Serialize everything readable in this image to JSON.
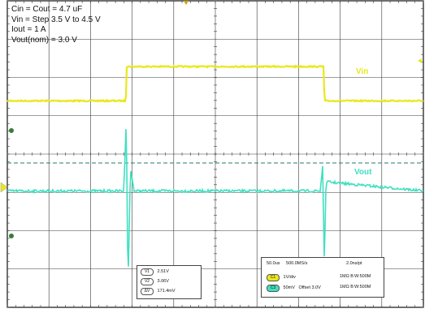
{
  "test_conditions": [
    "Cin = Cout = 4.7 uF",
    "Vin = Step 3.5 V to 4.5 V",
    "Iout = 1 A",
    "Vout(nom) = 3.0 V"
  ],
  "colors": {
    "vin": "#e8e81e",
    "vout": "#40e0c0",
    "grid": "#3a3a3a",
    "frame": "#111111",
    "background": "#ffffff"
  },
  "chart_data": {
    "type": "line",
    "title": "",
    "xlabel": "",
    "ylabel": "",
    "grid": true,
    "divisions": {
      "x": 10,
      "y": 8
    },
    "series": [
      {
        "name": "Vin",
        "color": "#e8e81e",
        "channel": "C1",
        "scale": "1V/div",
        "x": [
          0,
          2.85,
          2.86,
          7.61,
          7.62,
          10
        ],
        "y": [
          3.5,
          3.5,
          4.5,
          4.5,
          3.5,
          3.5
        ]
      },
      {
        "name": "Vout",
        "color": "#40e0c0",
        "channel": "C3",
        "scale": "50mV/div",
        "offset": "3.0V",
        "x": [
          0,
          2.8,
          2.86,
          2.9,
          2.96,
          3.05,
          7.52,
          7.58,
          7.62,
          7.66,
          10
        ],
        "y": [
          0,
          0,
          96,
          -126,
          28,
          0,
          0,
          33,
          -96,
          12,
          0
        ]
      }
    ]
  },
  "trace_labels": {
    "vin": "Vin",
    "vout": "Vout"
  },
  "cursor_box": {
    "rows": [
      {
        "tag": "V1",
        "value": "2.51V"
      },
      {
        "tag": "V2",
        "value": "3.06V"
      },
      {
        "tag": "ΔV",
        "value": "171.4mV"
      }
    ]
  },
  "settings_box": {
    "timebase": "50.0us",
    "sample_rate": "500.0MS/s",
    "record_resolution": "2.0ns/pt",
    "channels": [
      {
        "tag": "C1",
        "scale": "1V/div",
        "offset": "",
        "impedance": "1MΩ B",
        "bandwidth": "W:500M"
      },
      {
        "tag": "C3",
        "scale": "50mV",
        "offset": "Offset 3.0V",
        "impedance": "1MΩ B",
        "bandwidth": "W:500M"
      }
    ]
  }
}
